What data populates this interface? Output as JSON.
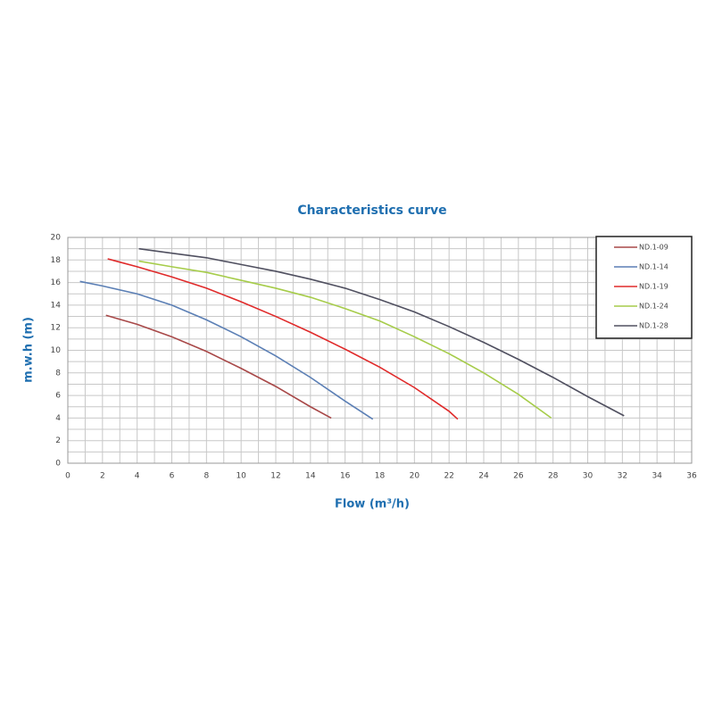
{
  "chart_data": {
    "type": "line",
    "title": "Characteristics curve",
    "x_label": "Flow (m³/h)",
    "y_label": "m.w.h (m)",
    "xlim": [
      0,
      36
    ],
    "xticks": [
      0,
      2,
      4,
      6,
      8,
      10,
      12,
      14,
      16,
      18,
      20,
      22,
      24,
      26,
      28,
      30,
      32,
      34,
      36
    ],
    "ylim": [
      0,
      20
    ],
    "yticks": [
      0,
      2,
      4,
      6,
      8,
      10,
      12,
      14,
      16,
      18,
      20
    ],
    "grid": true,
    "legend": "upper right",
    "series": [
      {
        "name": "ND.1-09",
        "color": "#a84848",
        "x": [
          2.2,
          4,
          6,
          8,
          10,
          12,
          14,
          15.2
        ],
        "values": [
          13.1,
          12.3,
          11.2,
          9.9,
          8.4,
          6.8,
          5.0,
          4.0
        ]
      },
      {
        "name": "ND.1-14",
        "color": "#5b7fb5",
        "x": [
          0.7,
          2,
          4,
          6,
          8,
          10,
          12,
          14,
          16,
          17.6
        ],
        "values": [
          16.1,
          15.7,
          15.0,
          14.0,
          12.7,
          11.2,
          9.5,
          7.6,
          5.5,
          3.9
        ]
      },
      {
        "name": "ND.1-19",
        "color": "#e02a2a",
        "x": [
          2.3,
          4,
          6,
          8,
          10,
          12,
          14,
          16,
          18,
          20,
          22,
          22.5
        ],
        "values": [
          18.1,
          17.4,
          16.5,
          15.5,
          14.3,
          13.0,
          11.6,
          10.1,
          8.5,
          6.7,
          4.6,
          3.9
        ]
      },
      {
        "name": "ND.1-24",
        "color": "#a6cc4a",
        "x": [
          4.1,
          6,
          8,
          10,
          12,
          14,
          16,
          18,
          20,
          22,
          24,
          26,
          27.9
        ],
        "values": [
          17.9,
          17.4,
          16.9,
          16.2,
          15.5,
          14.7,
          13.7,
          12.6,
          11.2,
          9.7,
          8.0,
          6.1,
          4.0
        ]
      },
      {
        "name": "ND.1-28",
        "color": "#505060",
        "x": [
          4.1,
          6,
          8,
          10,
          12,
          14,
          16,
          18,
          20,
          22,
          24,
          26,
          28,
          30,
          32.1
        ],
        "values": [
          19.0,
          18.6,
          18.2,
          17.6,
          17.0,
          16.3,
          15.5,
          14.5,
          13.4,
          12.1,
          10.7,
          9.2,
          7.6,
          5.9,
          4.2
        ]
      }
    ]
  }
}
